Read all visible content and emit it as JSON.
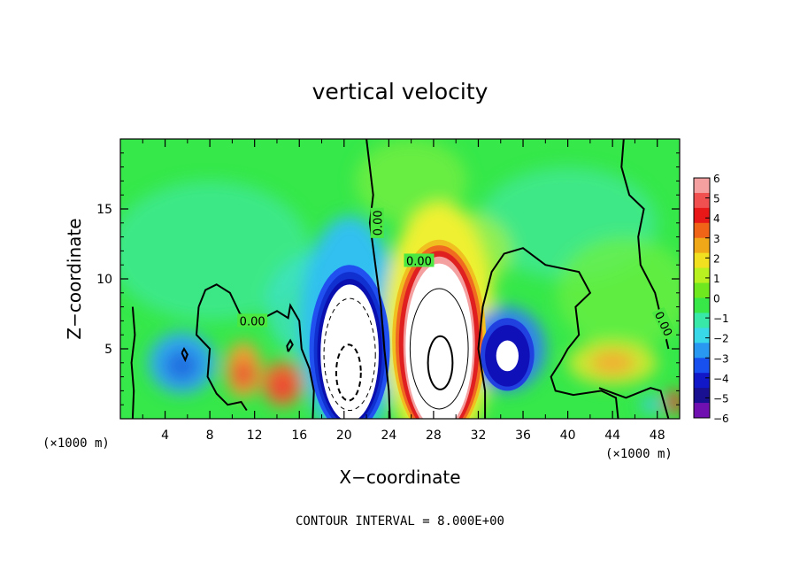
{
  "chart_data": {
    "type": "heatmap",
    "title": "vertical velocity",
    "xlabel": "X−coordinate",
    "ylabel": "Z−coordinate",
    "x_unit": "(×1000 m)",
    "y_unit": "(×1000 m)",
    "xlim": [
      0,
      50
    ],
    "ylim": [
      0,
      20
    ],
    "x_ticks": [
      4,
      8,
      12,
      16,
      20,
      24,
      28,
      32,
      36,
      40,
      44,
      48
    ],
    "y_ticks": [
      5,
      10,
      15
    ],
    "x_tick_labels": [
      "4",
      "8",
      "12",
      "16",
      "20",
      "24",
      "28",
      "32",
      "36",
      "40",
      "44",
      "48"
    ],
    "y_tick_labels": [
      "5",
      "10",
      "15"
    ],
    "colorbar": {
      "min": -6,
      "max": 6,
      "ticks": [
        6,
        5,
        4,
        3,
        2,
        1,
        0,
        -1,
        -2,
        -3,
        -4,
        -5,
        -6
      ],
      "tick_labels": [
        "6",
        "5",
        "4",
        "3",
        "2",
        "1",
        "0",
        "−1",
        "−2",
        "−3",
        "−4",
        "−5",
        "−6"
      ]
    },
    "contour_labels": [
      "0.00",
      "0.00",
      "0.00",
      "0.00"
    ],
    "footnote": "CONTOUR INTERVAL = 8.000E+00",
    "features": [
      {
        "kind": "updraft",
        "x": 28.5,
        "z": 4.5,
        "peak": 24
      },
      {
        "kind": "downdraft",
        "x": 20.5,
        "z": 4.0,
        "peak": -18
      },
      {
        "kind": "downdraft",
        "x": 34.5,
        "z": 4.5,
        "peak": -7
      },
      {
        "kind": "downdraft",
        "x": 5.5,
        "z": 4.0,
        "peak": -2.5
      },
      {
        "kind": "updraft",
        "x": 11.0,
        "z": 3.5,
        "peak": 3.5
      },
      {
        "kind": "updraft",
        "x": 14.5,
        "z": 2.5,
        "peak": 3.0
      },
      {
        "kind": "updraft",
        "x": 44.0,
        "z": 4.0,
        "peak": 2.0
      }
    ]
  }
}
